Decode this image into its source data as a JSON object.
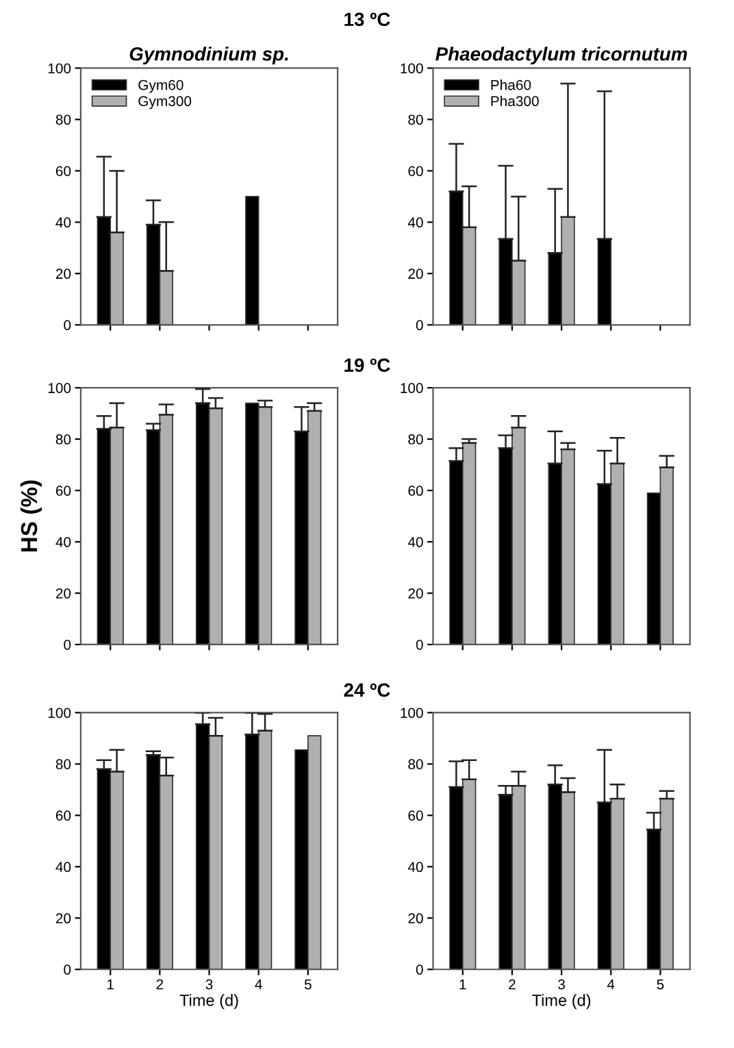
{
  "chart_data": [
    {
      "type": "bar",
      "title": "Gymnodinium sp.",
      "annotations": [
        "13 ºC"
      ],
      "categories": [
        null,
        null,
        null,
        null,
        null
      ],
      "ylim": [
        0,
        100
      ],
      "yticks": [
        0,
        20,
        40,
        60,
        80,
        100
      ],
      "tick_labels": "y",
      "legend": "top left",
      "series": [
        {
          "name": "Gym60",
          "color": "#000000",
          "values": [
            42,
            39,
            null,
            50,
            null
          ],
          "errors": [
            [
              42,
              65.5
            ],
            [
              39,
              48.5
            ],
            null,
            null,
            null
          ]
        },
        {
          "name": "Gym300",
          "color": "#b0b0b0",
          "values": [
            36,
            21,
            null,
            null,
            null
          ],
          "errors": [
            [
              36,
              60
            ],
            [
              21,
              40
            ],
            null,
            null,
            null
          ]
        }
      ]
    },
    {
      "type": "bar",
      "title": "Phaeodactylum tricornutum",
      "categories": [
        null,
        null,
        null,
        null,
        null
      ],
      "ylim": [
        0,
        100
      ],
      "yticks": [
        0,
        20,
        40,
        60,
        80,
        100
      ],
      "tick_labels": "y",
      "legend": "top left",
      "series": [
        {
          "name": "Pha60",
          "color": "#000000",
          "values": [
            52,
            33.5,
            28,
            33.5,
            null
          ],
          "errors": [
            [
              52,
              70.5
            ],
            [
              33.5,
              62
            ],
            [
              28,
              53
            ],
            [
              33.5,
              91
            ],
            null
          ]
        },
        {
          "name": "Pha300",
          "color": "#b0b0b0",
          "values": [
            38,
            25,
            42,
            null,
            null
          ],
          "errors": [
            [
              38,
              54
            ],
            [
              25,
              50
            ],
            [
              42,
              94
            ],
            null,
            null
          ]
        }
      ]
    },
    {
      "type": "bar",
      "annotations": [
        "19 ºC"
      ],
      "ylabel": "HS (%)",
      "categories": [
        null,
        null,
        null,
        null,
        null
      ],
      "ylim": [
        0,
        100
      ],
      "yticks": [
        0,
        20,
        40,
        60,
        80,
        100
      ],
      "tick_labels": "y",
      "series": [
        {
          "color": "#000000",
          "values": [
            84,
            83.5,
            94,
            94,
            83
          ],
          "errors": [
            [
              84,
              89
            ],
            [
              83.5,
              86
            ],
            [
              94,
              99.5
            ],
            null,
            [
              83,
              92.5
            ]
          ]
        },
        {
          "color": "#b0b0b0",
          "values": [
            84.5,
            89.5,
            92,
            92.5,
            91
          ],
          "errors": [
            [
              84.5,
              94
            ],
            [
              89.5,
              93.5
            ],
            [
              92,
              96
            ],
            [
              92.5,
              95
            ],
            [
              91,
              94
            ]
          ]
        }
      ]
    },
    {
      "type": "bar",
      "categories": [
        null,
        null,
        null,
        null,
        null
      ],
      "ylim": [
        0,
        100
      ],
      "yticks": [
        0,
        20,
        40,
        60,
        80,
        100
      ],
      "tick_labels": "y",
      "series": [
        {
          "color": "#000000",
          "values": [
            71.5,
            76.5,
            70.5,
            62.5,
            59
          ],
          "errors": [
            [
              71.5,
              76.5
            ],
            [
              76.5,
              81.5
            ],
            [
              70.5,
              83
            ],
            [
              62.5,
              75.5
            ],
            null
          ]
        },
        {
          "color": "#b0b0b0",
          "values": [
            78.5,
            84.5,
            76,
            70.5,
            69
          ],
          "errors": [
            [
              78.5,
              80
            ],
            [
              84.5,
              89
            ],
            [
              76,
              78.5
            ],
            [
              70.5,
              80.5
            ],
            [
              69,
              73.5
            ]
          ]
        }
      ]
    },
    {
      "type": "bar",
      "annotations": [
        "24 ºC"
      ],
      "xlabel": "Time (d)",
      "categories": [
        "1",
        "2",
        "3",
        "4",
        "5"
      ],
      "ylim": [
        0,
        100
      ],
      "yticks": [
        0,
        20,
        40,
        60,
        80,
        100
      ],
      "series": [
        {
          "color": "#000000",
          "values": [
            78,
            83.5,
            95.5,
            91.5,
            85.5
          ],
          "errors": [
            [
              78,
              81.5
            ],
            [
              83.5,
              85
            ],
            [
              95.5,
              100
            ],
            [
              91.5,
              100
            ],
            null
          ]
        },
        {
          "color": "#b0b0b0",
          "values": [
            77,
            75.5,
            91,
            93,
            91
          ],
          "errors": [
            [
              77,
              85.5
            ],
            [
              75.5,
              82.5
            ],
            [
              91,
              98
            ],
            [
              93,
              99.5
            ],
            null
          ]
        }
      ]
    },
    {
      "type": "bar",
      "xlabel": "Time (d)",
      "categories": [
        "1",
        "2",
        "3",
        "4",
        "5"
      ],
      "ylim": [
        0,
        100
      ],
      "yticks": [
        0,
        20,
        40,
        60,
        80,
        100
      ],
      "series": [
        {
          "color": "#000000",
          "values": [
            71,
            68,
            72,
            65,
            54.5
          ],
          "errors": [
            [
              71,
              81
            ],
            [
              68,
              71.5
            ],
            [
              72,
              79.5
            ],
            [
              65,
              85.5
            ],
            [
              54.5,
              61
            ]
          ]
        },
        {
          "color": "#b0b0b0",
          "values": [
            74,
            71.5,
            69,
            66.5,
            66.5
          ],
          "errors": [
            [
              74,
              81.5
            ],
            [
              71.5,
              77
            ],
            [
              69,
              74.5
            ],
            [
              66.5,
              72
            ],
            [
              66.5,
              69.5
            ]
          ]
        }
      ]
    }
  ]
}
